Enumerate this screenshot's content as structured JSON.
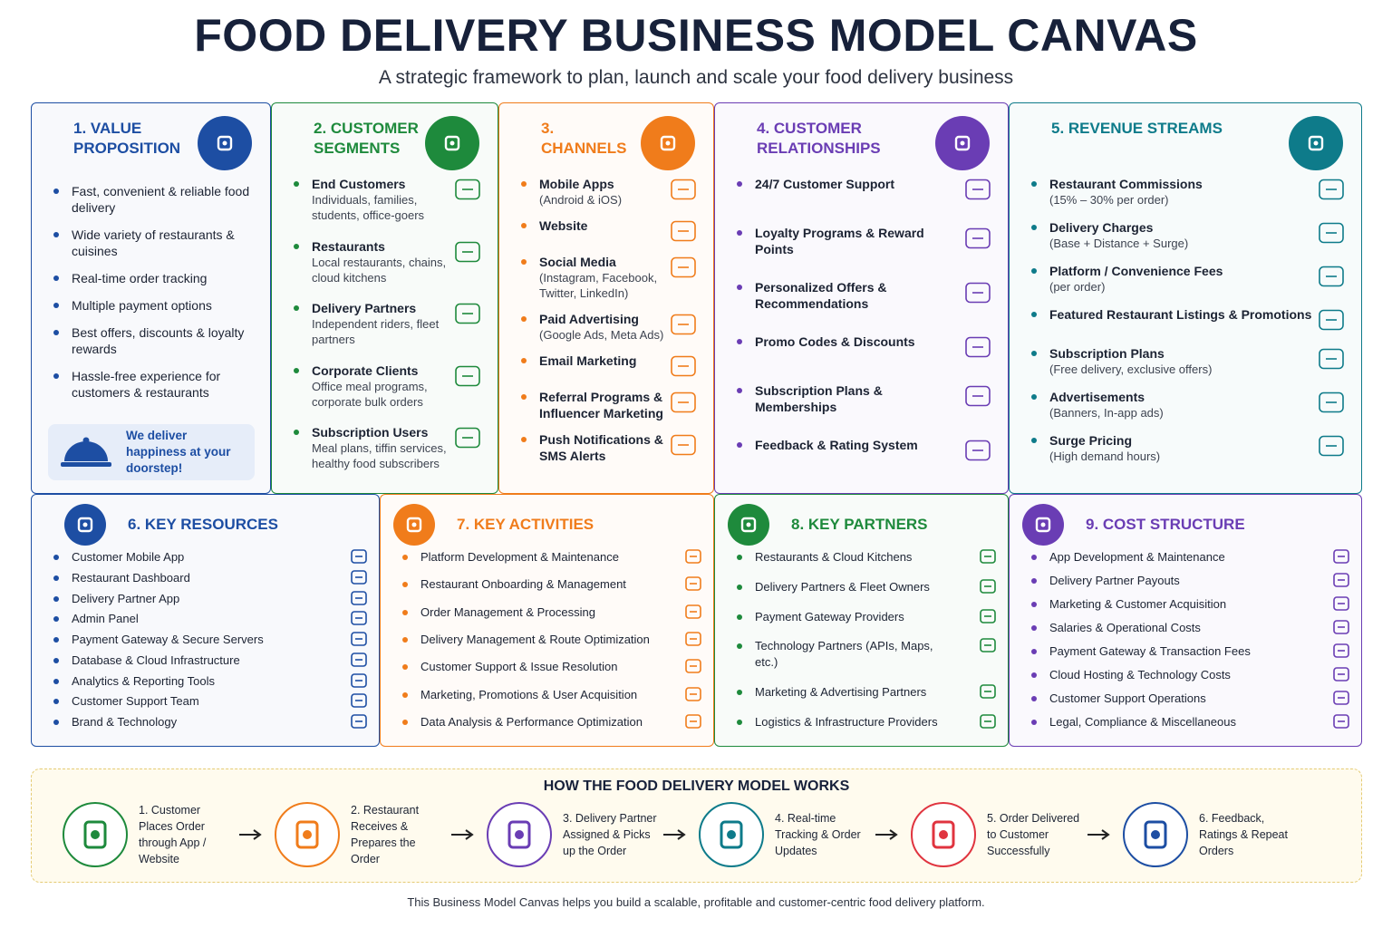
{
  "header": {
    "title": "FOOD DELIVERY BUSINESS MODEL CANVAS",
    "subtitle": "A strategic framework to plan, launch and scale your food delivery business"
  },
  "sections": [
    {
      "title": "1. VALUE PROPOSITION",
      "color": "#1d4ea3",
      "items": [
        "Fast, convenient & reliable food delivery",
        "Wide variety of restaurants & cuisines",
        "Real-time order tracking",
        "Multiple payment options",
        "Best offers, discounts & loyalty rewards",
        "Hassle-free experience for customers & restaurants"
      ],
      "callout": "We deliver happiness at your doorstep!"
    },
    {
      "title": "2. CUSTOMER SEGMENTS",
      "color": "#1e8a3c",
      "items": [
        {
          "title": "End Customers",
          "detail": "Individuals, families, students, office-goers"
        },
        {
          "title": "Restaurants",
          "detail": "Local restaurants, chains, cloud kitchens"
        },
        {
          "title": "Delivery Partners",
          "detail": "Independent riders, fleet partners"
        },
        {
          "title": "Corporate Clients",
          "detail": "Office meal programs, corporate bulk orders"
        },
        {
          "title": "Subscription Users",
          "detail": "Meal plans, tiffin services, healthy food subscribers"
        }
      ]
    },
    {
      "title": "3. CHANNELS",
      "color": "#f07c1b",
      "items": [
        {
          "title": "Mobile Apps",
          "detail": "(Android & iOS)"
        },
        {
          "title": "Website"
        },
        {
          "title": "Social Media",
          "detail": "(Instagram, Facebook, Twitter, LinkedIn)"
        },
        {
          "title": "Paid Advertising",
          "detail": "(Google Ads, Meta Ads)"
        },
        {
          "title": "Email Marketing"
        },
        {
          "title": "Referral Programs & Influencer Marketing"
        },
        {
          "title": "Push Notifications & SMS Alerts"
        }
      ]
    },
    {
      "title": "4. CUSTOMER RELATIONSHIPS",
      "color": "#6a3db4",
      "items": [
        {
          "title": "24/7 Customer Support"
        },
        {
          "title": "Loyalty Programs & Reward Points"
        },
        {
          "title": "Personalized Offers & Recommendations"
        },
        {
          "title": "Promo Codes & Discounts"
        },
        {
          "title": "Subscription Plans & Memberships"
        },
        {
          "title": "Feedback & Rating System"
        }
      ]
    },
    {
      "title": "5. REVENUE STREAMS",
      "color": "#0e7b8a",
      "items": [
        {
          "title": "Restaurant Commissions",
          "detail": "(15% – 30% per order)"
        },
        {
          "title": "Delivery Charges",
          "detail": "(Base + Distance + Surge)"
        },
        {
          "title": "Platform / Convenience Fees",
          "detail": "(per order)"
        },
        {
          "title": "Featured Restaurant Listings & Promotions"
        },
        {
          "title": "Subscription Plans",
          "detail": "(Free delivery, exclusive offers)"
        },
        {
          "title": "Advertisements",
          "detail": "(Banners, In-app ads)"
        },
        {
          "title": "Surge Pricing",
          "detail": "(High demand hours)"
        }
      ]
    },
    {
      "title": "6. KEY RESOURCES",
      "color": "#1d4ea3",
      "items": [
        "Customer Mobile App",
        "Restaurant Dashboard",
        "Delivery Partner App",
        "Admin Panel",
        "Payment Gateway & Secure Servers",
        "Database & Cloud Infrastructure",
        "Analytics & Reporting Tools",
        "Customer Support Team",
        "Brand & Technology"
      ]
    },
    {
      "title": "7. KEY ACTIVITIES",
      "color": "#f07c1b",
      "items": [
        "Platform Development & Maintenance",
        "Restaurant Onboarding & Management",
        "Order Management & Processing",
        "Delivery Management & Route Optimization",
        "Customer Support & Issue Resolution",
        "Marketing, Promotions & User Acquisition",
        "Data Analysis & Performance Optimization"
      ]
    },
    {
      "title": "8. KEY PARTNERS",
      "color": "#1e8a3c",
      "items": [
        "Restaurants & Cloud Kitchens",
        "Delivery Partners & Fleet Owners",
        "Payment Gateway Providers",
        "Technology Partners (APIs, Maps, etc.)",
        "Marketing & Advertising Partners",
        "Logistics & Infrastructure Providers"
      ]
    },
    {
      "title": "9. COST STRUCTURE",
      "color": "#6a3db4",
      "items": [
        "App Development & Maintenance",
        "Delivery Partner Payouts",
        "Marketing & Customer Acquisition",
        "Salaries & Operational Costs",
        "Payment Gateway & Transaction Fees",
        "Cloud Hosting & Technology Costs",
        "Customer Support Operations",
        "Legal, Compliance & Miscellaneous"
      ]
    }
  ],
  "flow": {
    "title": "HOW THE FOOD DELIVERY MODEL WORKS",
    "steps": [
      {
        "text": "1. Customer Places Order through App / Website",
        "color": "#1e8a3c"
      },
      {
        "text": "2. Restaurant Receives & Prepares the Order",
        "color": "#f07c1b"
      },
      {
        "text": "3. Delivery Partner Assigned & Picks up the Order",
        "color": "#6a3db4"
      },
      {
        "text": "4. Real-time Tracking & Order Updates",
        "color": "#0e7b8a"
      },
      {
        "text": "5. Order Delivered to Customer Successfully",
        "color": "#e0343f"
      },
      {
        "text": "6. Feedback, Ratings & Repeat Orders",
        "color": "#1d4ea3"
      }
    ]
  },
  "footer": "This Business Model Canvas helps you build a scalable, profitable and customer-centric food delivery platform."
}
